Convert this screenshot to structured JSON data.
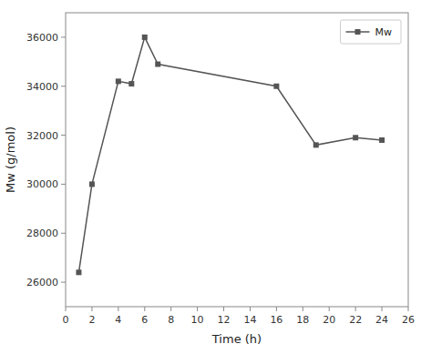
{
  "chart_data": {
    "type": "line",
    "x": [
      1,
      2,
      4,
      5,
      6,
      7,
      16,
      19,
      22,
      24
    ],
    "series": [
      {
        "name": "Mw",
        "color": "#555555",
        "marker": "square",
        "values": [
          26400,
          30000,
          34200,
          34100,
          36000,
          34900,
          34000,
          31600,
          31900,
          31800
        ]
      }
    ],
    "xlabel": "Time (h)",
    "ylabel": "Mw (g/mol)",
    "xlim": [
      0,
      26
    ],
    "ylim": [
      25000,
      37000
    ],
    "xticks": [
      0,
      2,
      4,
      6,
      8,
      10,
      12,
      14,
      16,
      18,
      20,
      22,
      24,
      26
    ],
    "yticks": [
      26000,
      28000,
      30000,
      32000,
      34000,
      36000
    ],
    "grid": false,
    "legend": "upper right"
  }
}
